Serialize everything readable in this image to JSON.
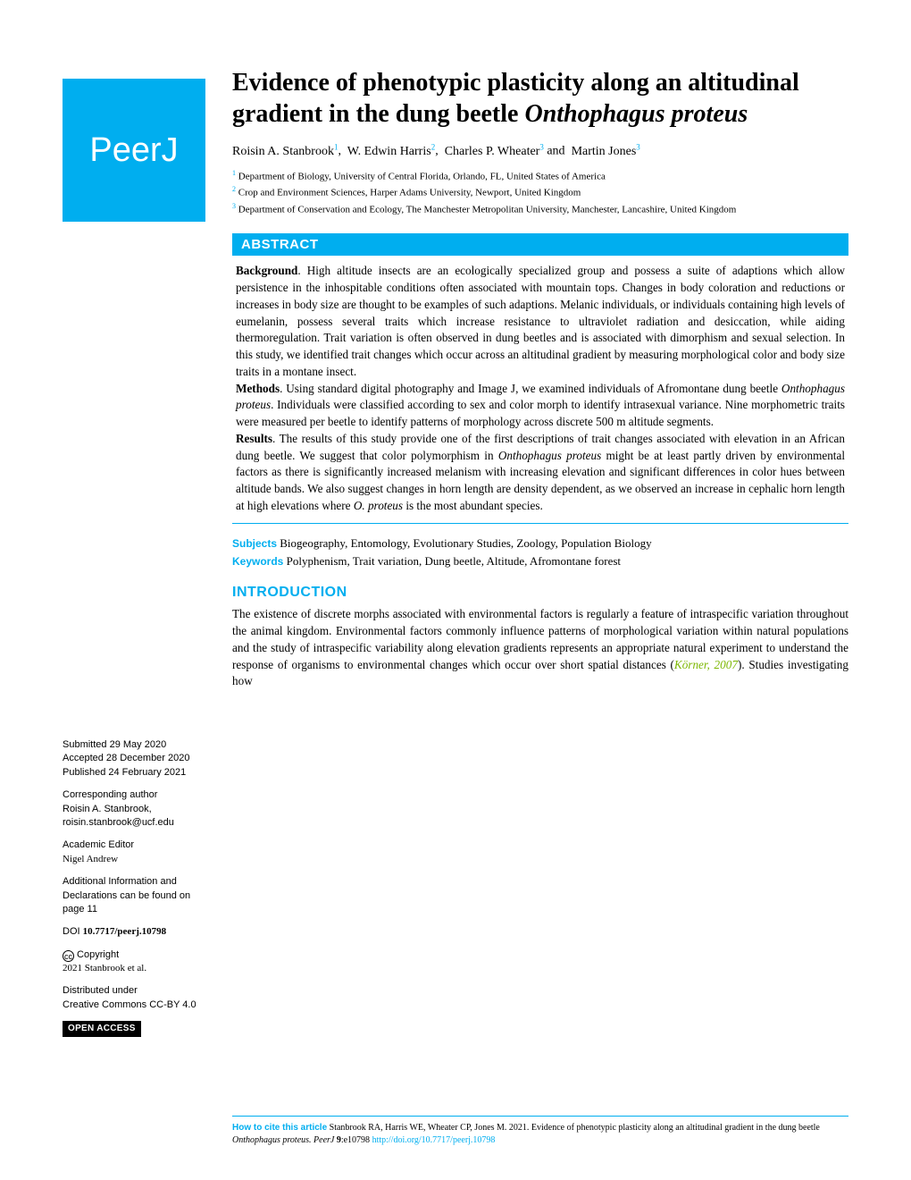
{
  "journal": {
    "logo_text": "PeerJ"
  },
  "title": {
    "main": "Evidence of phenotypic plasticity along an altitudinal gradient in the dung beetle ",
    "species": "Onthophagus proteus"
  },
  "authors": [
    {
      "name": "Roisin A. Stanbrook",
      "aff": "1"
    },
    {
      "name": "W. Edwin Harris",
      "aff": "2"
    },
    {
      "name": "Charles P. Wheater",
      "aff": "3"
    },
    {
      "name": "Martin Jones",
      "aff": "3"
    }
  ],
  "affiliations": [
    {
      "num": "1",
      "text": "Department of Biology, University of Central Florida, Orlando, FL, United States of America"
    },
    {
      "num": "2",
      "text": "Crop and Environment Sciences, Harper Adams University, Newport, United Kingdom"
    },
    {
      "num": "3",
      "text": "Department of Conservation and Ecology, The Manchester Metropolitan University, Manchester, Lancashire, United Kingdom"
    }
  ],
  "abstract": {
    "heading": "ABSTRACT",
    "background_label": "Background",
    "background": ". High altitude insects are an ecologically specialized group and possess a suite of adaptions which allow persistence in the inhospitable conditions often associated with mountain tops. Changes in body coloration and reductions or increases in body size are thought to be examples of such adaptions. Melanic individuals, or individuals containing high levels of eumelanin, possess several traits which increase resistance to ultraviolet radiation and desiccation, while aiding thermoregulation. Trait variation is often observed in dung beetles and is associated with dimorphism and sexual selection. In this study, we identified trait changes which occur across an altitudinal gradient by measuring morphological color and body size traits in a montane insect.",
    "methods_label": "Methods",
    "methods_pre": ". Using standard digital photography and Image J, we examined individuals of Afromontane dung beetle ",
    "methods_species": "Onthophagus proteus",
    "methods_post": ". Individuals were classified according to sex and color morph to identify intrasexual variance. Nine morphometric traits were measured per beetle to identify patterns of morphology across discrete 500 m altitude segments.",
    "results_label": "Results",
    "results_pre": ". The results of this study provide one of the first descriptions of trait changes associated with elevation in an African dung beetle. We suggest that color polymorphism in ",
    "results_species1": "Onthophagus proteus",
    "results_mid": " might be at least partly driven by environmental factors as there is significantly increased melanism with increasing elevation and significant differences in color hues between altitude bands. We also suggest changes in horn length are density dependent, as we observed an increase in cephalic horn length at high elevations where ",
    "results_species2": "O. proteus",
    "results_end": " is the most abundant species."
  },
  "subjects": {
    "label": "Subjects",
    "text": " Biogeography, Entomology, Evolutionary Studies, Zoology, Population Biology"
  },
  "keywords": {
    "label": "Keywords",
    "text": "  Polyphenism,  Trait variation,  Dung beetle,  Altitude, Afromontane forest"
  },
  "intro": {
    "heading": "INTRODUCTION",
    "body_pre": "The existence of discrete morphs associated with environmental factors is regularly a feature of intraspecific variation throughout the animal kingdom. Environmental factors commonly influence patterns of morphological variation within natural populations and the study of intraspecific variability along elevation gradients represents an appropriate natural experiment to understand the response of organisms to environmental changes which occur over short spatial distances (",
    "citation": "Körner, 2007",
    "body_post": "). Studies investigating how"
  },
  "sidebar": {
    "submitted_label": "Submitted",
    "submitted_date": " 29 May 2020",
    "accepted_label": "Accepted",
    "accepted_date": "  28 December 2020",
    "published_label": "Published",
    "published_date": " 24 February 2021",
    "corr_label": "Corresponding author",
    "corr_name": "Roisin A. Stanbrook,",
    "corr_email": "roisin.stanbrook@ucf.edu",
    "editor_label": "Academic Editor",
    "editor_name": "Nigel Andrew",
    "addl_info": "Additional Information and Declarations can be found on page 11",
    "doi_label": "DOI ",
    "doi_val": "10.7717/peerj.10798",
    "copyright_label": " Copyright",
    "copyright_text": "2021 Stanbrook et al.",
    "dist_label": "Distributed under",
    "dist_text": "Creative Commons CC-BY 4.0",
    "open_access": "OPEN ACCESS"
  },
  "footer": {
    "label": "How to cite this article",
    "text_pre": " Stanbrook RA, Harris WE, Wheater CP, Jones M. 2021. Evidence of phenotypic plasticity along an altitudinal gradient in the dung beetle ",
    "species": "Onthophagus proteus. PeerJ ",
    "vol": "9",
    "post": ":e10798 ",
    "link": "http://doi.org/10.7717/peerj.10798"
  },
  "colors": {
    "brand": "#00aeef",
    "citation": "#7db703"
  }
}
